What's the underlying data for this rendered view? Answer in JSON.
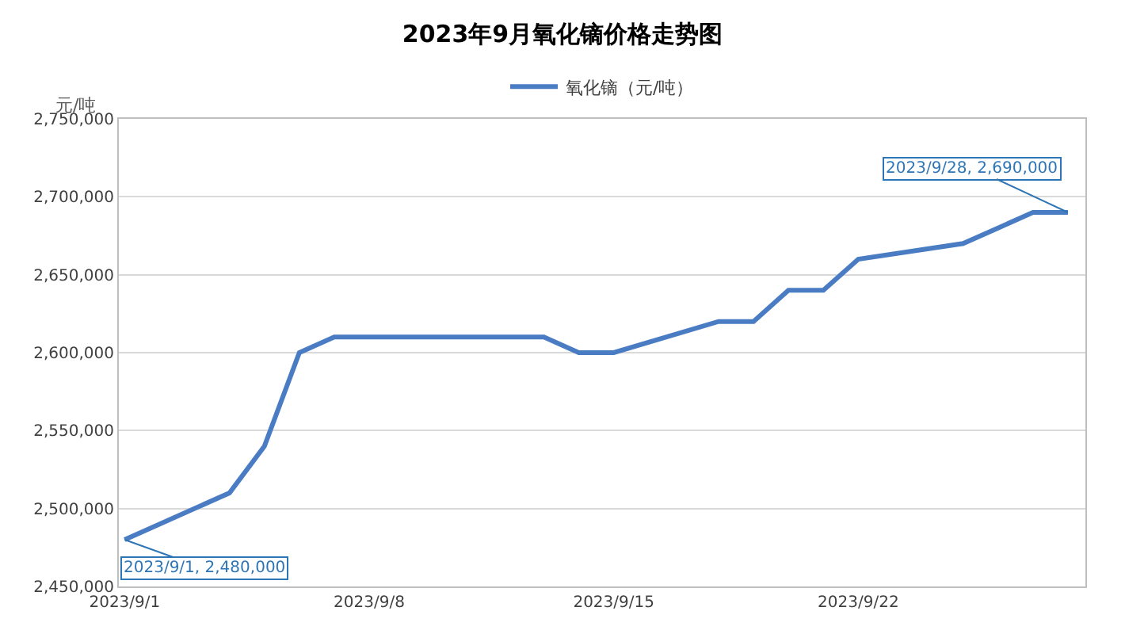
{
  "chart_data": {
    "type": "line",
    "title": "2023年9月氧化镝价格走势图",
    "ylabel": "元/吨",
    "x": [
      "2023-09-01",
      "2023-09-04",
      "2023-09-05",
      "2023-09-06",
      "2023-09-07",
      "2023-09-08",
      "2023-09-11",
      "2023-09-12",
      "2023-09-13",
      "2023-09-14",
      "2023-09-15",
      "2023-09-18",
      "2023-09-19",
      "2023-09-20",
      "2023-09-21",
      "2023-09-22",
      "2023-09-25",
      "2023-09-26",
      "2023-09-27",
      "2023-09-28"
    ],
    "series": [
      {
        "name": "氧化镝（元/吨）",
        "color": "#4a7cc4",
        "values": [
          2480000,
          2510000,
          2540000,
          2600000,
          2610000,
          2610000,
          2610000,
          2610000,
          2610000,
          2600000,
          2600000,
          2620000,
          2620000,
          2640000,
          2640000,
          2660000,
          2670000,
          2680000,
          2690000,
          2690000
        ]
      }
    ],
    "xlim": [
      "2023-08-31T20:00",
      "2023-09-28T12:00"
    ],
    "xticks": [
      {
        "value": "2023-09-01",
        "label": "2023/9/1"
      },
      {
        "value": "2023-09-08",
        "label": "2023/9/8"
      },
      {
        "value": "2023-09-15",
        "label": "2023/9/15"
      },
      {
        "value": "2023-09-22",
        "label": "2023/9/22"
      }
    ],
    "ylim": [
      2450000,
      2750000
    ],
    "yticks": [
      {
        "value": 2450000,
        "label": "2,450,000"
      },
      {
        "value": 2500000,
        "label": "2,500,000"
      },
      {
        "value": 2550000,
        "label": "2,550,000"
      },
      {
        "value": 2600000,
        "label": "2,600,000"
      },
      {
        "value": 2650000,
        "label": "2,650,000"
      },
      {
        "value": 2700000,
        "label": "2,700,000"
      },
      {
        "value": 2750000,
        "label": "2,750,000"
      }
    ],
    "annotations": [
      {
        "text": "2023/9/1, 2,480,000",
        "x": "2023-09-01",
        "y": 2480000
      },
      {
        "text": "2023/9/28, 2,690,000",
        "x": "2023-09-28",
        "y": 2690000
      }
    ],
    "grid": "y",
    "legend": "top",
    "marker": "none",
    "line_style": "solid"
  }
}
